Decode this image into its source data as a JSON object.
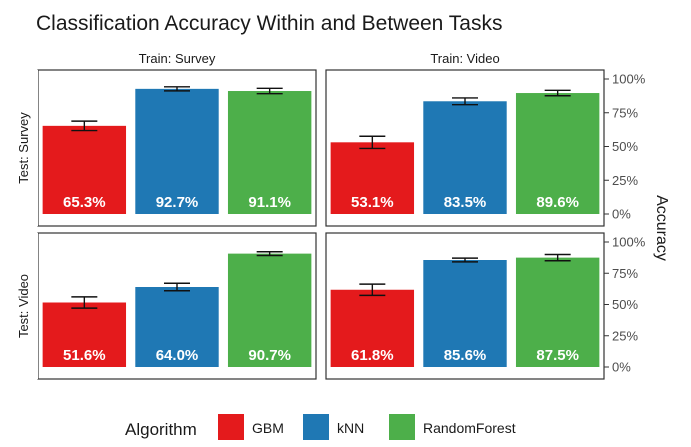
{
  "chart_data": {
    "type": "bar",
    "title": "Classification Accuracy Within and Between Tasks",
    "ylabel": "Accuracy",
    "ylim": [
      0,
      1
    ],
    "y_ticks": [
      "0%",
      "25%",
      "50%",
      "75%",
      "100%"
    ],
    "categories": [
      "GBM",
      "kNN",
      "RandomForest"
    ],
    "colors": {
      "GBM": "#e41a1c",
      "kNN": "#1f78b4",
      "RandomForest": "#4daf4a"
    },
    "column_facets": [
      "Train: Survey",
      "Train: Video"
    ],
    "row_facets": [
      "Test: Survey",
      "Test: Video"
    ],
    "legend": {
      "title": "Algorithm",
      "position": "bottom",
      "entries": [
        "GBM",
        "kNN",
        "RandomForest"
      ]
    },
    "panels": [
      {
        "train": "Train: Survey",
        "test": "Test: Survey",
        "values": [
          0.653,
          0.927,
          0.911
        ],
        "errors": [
          0.035,
          0.015,
          0.02
        ],
        "labels": [
          "65.3%",
          "92.7%",
          "91.1%"
        ]
      },
      {
        "train": "Train: Video",
        "test": "Test: Survey",
        "values": [
          0.531,
          0.835,
          0.896
        ],
        "errors": [
          0.045,
          0.025,
          0.02
        ],
        "labels": [
          "53.1%",
          "83.5%",
          "89.6%"
        ]
      },
      {
        "train": "Train: Survey",
        "test": "Test: Video",
        "values": [
          0.516,
          0.64,
          0.907
        ],
        "errors": [
          0.045,
          0.03,
          0.015
        ],
        "labels": [
          "51.6%",
          "64.0%",
          "90.7%"
        ]
      },
      {
        "train": "Train: Video",
        "test": "Test: Video",
        "values": [
          0.618,
          0.856,
          0.875
        ],
        "errors": [
          0.045,
          0.015,
          0.025
        ],
        "labels": [
          "61.8%",
          "85.6%",
          "87.5%"
        ]
      }
    ]
  }
}
